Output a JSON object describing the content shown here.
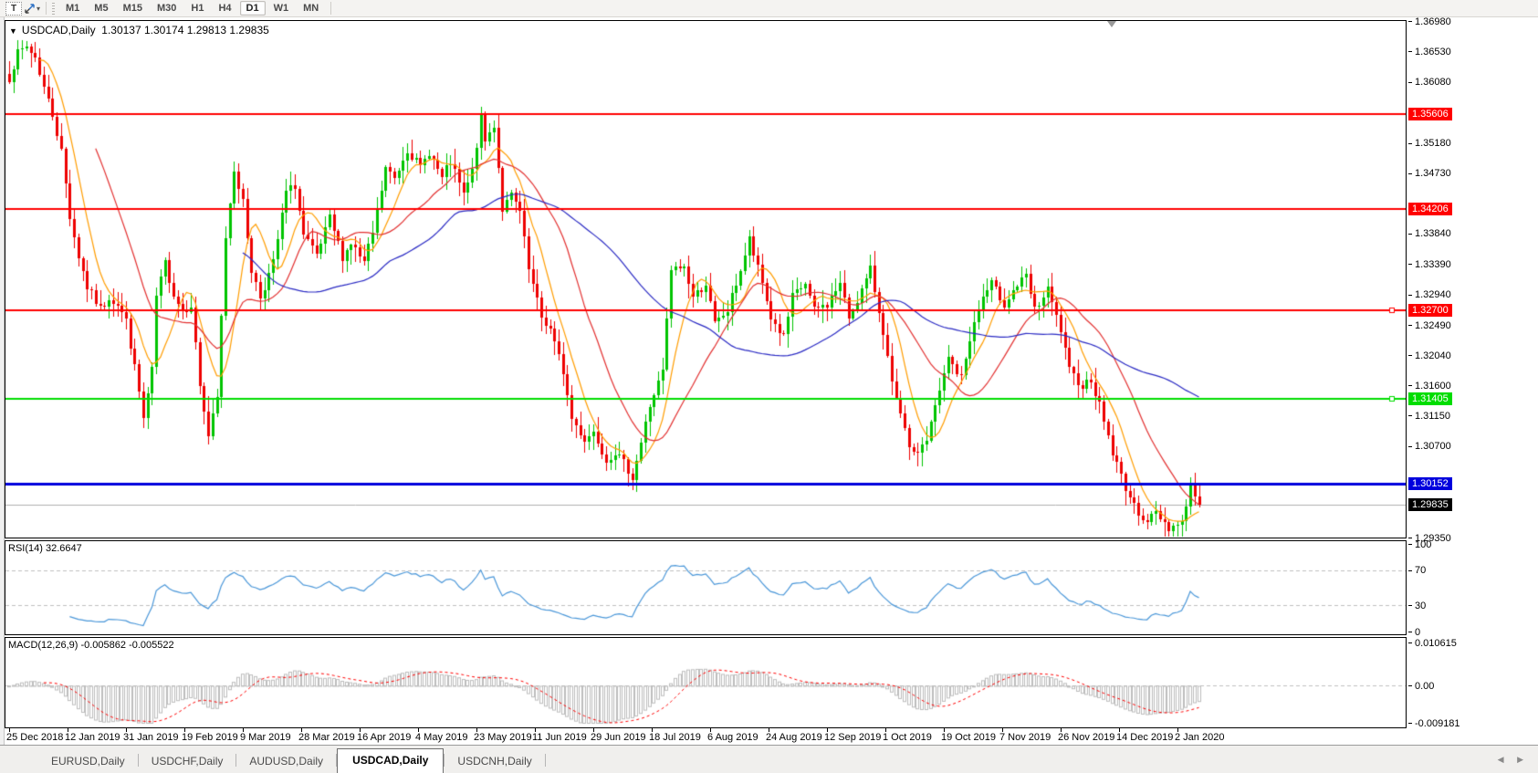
{
  "toolbar": {
    "text_tool_label": "T",
    "timeframes": [
      "M1",
      "M5",
      "M15",
      "M30",
      "H1",
      "H4",
      "D1",
      "W1",
      "MN"
    ],
    "active_timeframe": "D1"
  },
  "chart": {
    "title": "USDCAD,Daily",
    "ohlc_text": "1.30137 1.30174 1.29813 1.29835",
    "rsi_label": "RSI(14) 32.6647",
    "macd_label": "MACD(12,26,9) -0.005862 -0.005522"
  },
  "tabs": {
    "items": [
      "EURUSD,Daily",
      "USDCHF,Daily",
      "AUDUSD,Daily",
      "USDCAD,Daily",
      "USDCNH,Daily"
    ],
    "active_index": 3,
    "scroll_left": "◀",
    "scroll_right": "▶"
  },
  "chart_data": {
    "type": "candlestick",
    "symbol": "USDCAD",
    "timeframe": "Daily",
    "current_bar": {
      "open": 1.30137,
      "high": 1.30174,
      "low": 1.29813,
      "close": 1.29835
    },
    "ylim": [
      1.2935,
      1.3698
    ],
    "grid": false,
    "num_candles": 276,
    "candle_colors": {
      "up": "#00c400",
      "down": "#ee0000"
    },
    "price_ticks": [
      "1.36980",
      "1.36530",
      "1.36080",
      "1.35180",
      "1.34730",
      "1.33840",
      "1.33390",
      "1.32940",
      "1.32490",
      "1.32040",
      "1.31600",
      "1.31150",
      "1.30700",
      "1.29350"
    ],
    "horizontal_lines": [
      {
        "price": 1.35606,
        "label": "1.35606",
        "color": "#ff0000",
        "width": 2,
        "handle": false
      },
      {
        "price": 1.34206,
        "label": "1.34206",
        "color": "#ff0000",
        "width": 2,
        "handle": false
      },
      {
        "price": 1.327,
        "label": "1.32700",
        "color": "#ff0000",
        "width": 2,
        "handle": true
      },
      {
        "price": 1.31405,
        "label": "1.31405",
        "color": "#00dd00",
        "width": 2,
        "handle": true
      },
      {
        "price": 1.30152,
        "label": "1.30152",
        "color": "#0000dd",
        "width": 3,
        "handle": false
      }
    ],
    "current_price_line": {
      "price": 1.29835,
      "label": "1.29835",
      "color": "#b0b0b0",
      "label_bg": "#000000"
    },
    "moving_averages": [
      {
        "period": 8,
        "color": "#ff9d00"
      },
      {
        "period": 21,
        "color": "#e33030"
      },
      {
        "period": 55,
        "color": "#2a2ac4"
      }
    ],
    "close_waypoints": [
      [
        0,
        1.3615
      ],
      [
        2,
        1.365
      ],
      [
        4,
        1.366
      ],
      [
        6,
        1.3645
      ],
      [
        8,
        1.36
      ],
      [
        10,
        1.356
      ],
      [
        12,
        1.3505
      ],
      [
        14,
        1.341
      ],
      [
        16,
        1.335
      ],
      [
        18,
        1.3305
      ],
      [
        21,
        1.3272
      ],
      [
        23,
        1.329
      ],
      [
        25,
        1.328
      ],
      [
        27,
        1.3255
      ],
      [
        28,
        1.322
      ],
      [
        30,
        1.315
      ],
      [
        31,
        1.311
      ],
      [
        33,
        1.318
      ],
      [
        34,
        1.329
      ],
      [
        36,
        1.334
      ],
      [
        38,
        1.3295
      ],
      [
        40,
        1.327
      ],
      [
        42,
        1.328
      ],
      [
        44,
        1.316
      ],
      [
        46,
        1.3085
      ],
      [
        48,
        1.314
      ],
      [
        50,
        1.338
      ],
      [
        52,
        1.348
      ],
      [
        54,
        1.343
      ],
      [
        56,
        1.333
      ],
      [
        58,
        1.329
      ],
      [
        61,
        1.334
      ],
      [
        64,
        1.3445
      ],
      [
        66,
        1.3455
      ],
      [
        68,
        1.338
      ],
      [
        71,
        1.335
      ],
      [
        74,
        1.3405
      ],
      [
        77,
        1.335
      ],
      [
        79,
        1.337
      ],
      [
        82,
        1.334
      ],
      [
        84,
        1.3385
      ],
      [
        87,
        1.348
      ],
      [
        89,
        1.3465
      ],
      [
        92,
        1.351
      ],
      [
        95,
        1.348
      ],
      [
        97,
        1.3505
      ],
      [
        100,
        1.3465
      ],
      [
        102,
        1.349
      ],
      [
        105,
        1.344
      ],
      [
        107,
        1.3475
      ],
      [
        109,
        1.3555
      ],
      [
        110,
        1.352
      ],
      [
        112,
        1.3545
      ],
      [
        114,
        1.342
      ],
      [
        116,
        1.344
      ],
      [
        118,
        1.3415
      ],
      [
        120,
        1.333
      ],
      [
        123,
        1.326
      ],
      [
        125,
        1.3242
      ],
      [
        128,
        1.318
      ],
      [
        130,
        1.311
      ],
      [
        133,
        1.308
      ],
      [
        135,
        1.3092
      ],
      [
        138,
        1.305
      ],
      [
        140,
        1.3062
      ],
      [
        143,
        1.3035
      ],
      [
        144,
        1.3025
      ],
      [
        146,
        1.3075
      ],
      [
        148,
        1.313
      ],
      [
        151,
        1.318
      ],
      [
        153,
        1.333
      ],
      [
        156,
        1.3335
      ],
      [
        158,
        1.329
      ],
      [
        161,
        1.331
      ],
      [
        163,
        1.325
      ],
      [
        166,
        1.327
      ],
      [
        169,
        1.333
      ],
      [
        171,
        1.3375
      ],
      [
        174,
        1.331
      ],
      [
        176,
        1.326
      ],
      [
        179,
        1.323
      ],
      [
        181,
        1.329
      ],
      [
        184,
        1.331
      ],
      [
        186,
        1.327
      ],
      [
        189,
        1.328
      ],
      [
        192,
        1.331
      ],
      [
        194,
        1.326
      ],
      [
        197,
        1.33
      ],
      [
        199,
        1.333
      ],
      [
        202,
        1.324
      ],
      [
        204,
        1.316
      ],
      [
        207,
        1.309
      ],
      [
        209,
        1.3055
      ],
      [
        212,
        1.308
      ],
      [
        215,
        1.315
      ],
      [
        217,
        1.32
      ],
      [
        220,
        1.317
      ],
      [
        222,
        1.323
      ],
      [
        225,
        1.329
      ],
      [
        227,
        1.331
      ],
      [
        230,
        1.328
      ],
      [
        232,
        1.33
      ],
      [
        235,
        1.332
      ],
      [
        237,
        1.327
      ],
      [
        240,
        1.33
      ],
      [
        243,
        1.324
      ],
      [
        245,
        1.318
      ],
      [
        248,
        1.316
      ],
      [
        250,
        1.317
      ],
      [
        253,
        1.311
      ],
      [
        255,
        1.306
      ],
      [
        258,
        1.301
      ],
      [
        260,
        1.298
      ],
      [
        263,
        1.296
      ],
      [
        265,
        1.2972
      ],
      [
        268,
        1.295
      ],
      [
        271,
        1.2958
      ],
      [
        273,
        1.3012
      ],
      [
        275,
        1.2984
      ]
    ],
    "indicators": {
      "rsi": {
        "period": 14,
        "current": 32.6647,
        "levels": [
          70,
          30
        ],
        "ticks": [
          {
            "value": 100,
            "label": "100"
          },
          {
            "value": 70,
            "label": "70"
          },
          {
            "value": 30,
            "label": "30"
          },
          {
            "value": 0,
            "label": "0"
          }
        ],
        "ylim": [
          0,
          100
        ],
        "line_color": "#4a97d9",
        "level_color": "#c0c0c0"
      },
      "macd": {
        "fast": 12,
        "slow": 26,
        "signal": 9,
        "current_values": [
          -0.005862,
          -0.005522
        ],
        "ticks": [
          {
            "value": 0.010615,
            "label": "0.010615"
          },
          {
            "value": 0,
            "label": "0.00"
          },
          {
            "value": -0.009181,
            "label": "-0.009181"
          }
        ],
        "ylim": [
          -0.009181,
          0.010615
        ],
        "histogram_color": "#bdbdbd",
        "signal_color": "#ff0000"
      }
    },
    "x_labels": [
      "25 Dec 2018",
      "12 Jan 2019",
      "31 Jan 2019",
      "19 Feb 2019",
      "9 Mar 2019",
      "28 Mar 2019",
      "16 Apr 2019",
      "4 May 2019",
      "23 May 2019",
      "11 Jun 2019",
      "29 Jun 2019",
      "18 Jul 2019",
      "6 Aug 2019",
      "24 Aug 2019",
      "12 Sep 2019",
      "1 Oct 2019",
      "19 Oct 2019",
      "7 Nov 2019",
      "26 Nov 2019",
      "14 Dec 2019",
      "2 Jan 2020"
    ],
    "x_label_spacing_px": 64,
    "candle_spacing_px": 4.74
  }
}
